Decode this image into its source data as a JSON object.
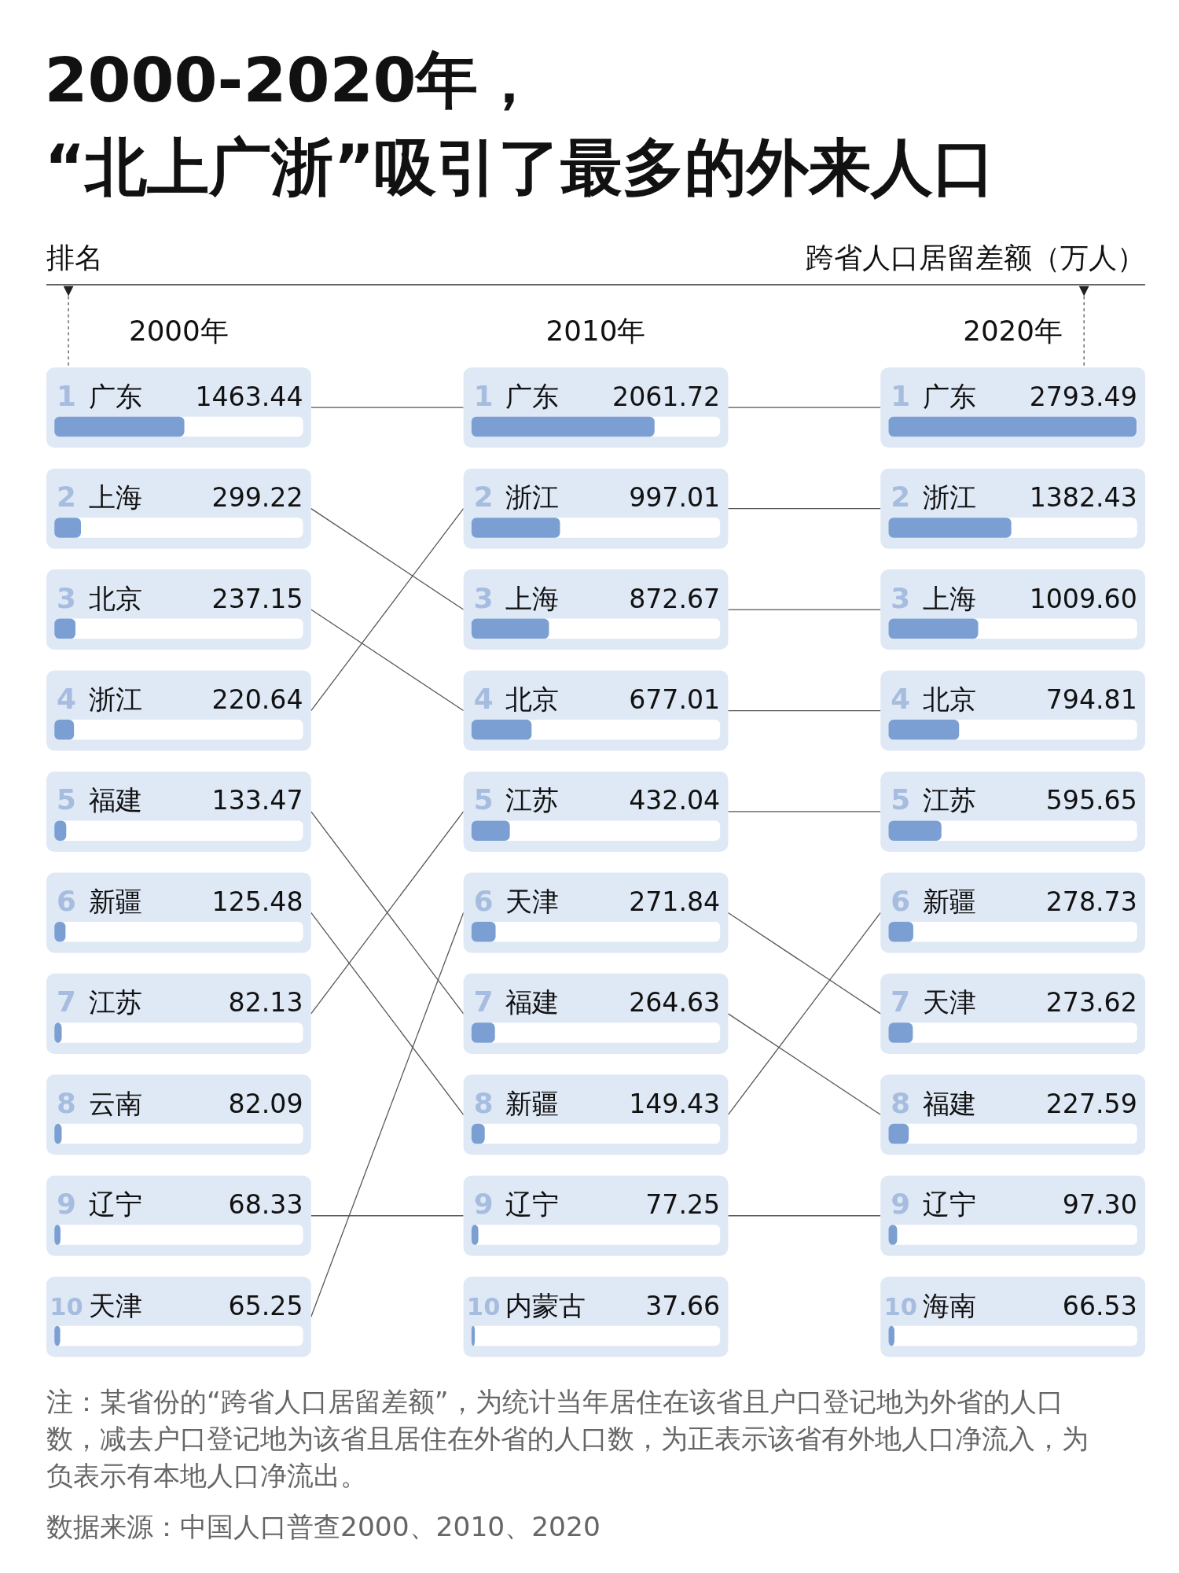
{
  "chart_data": [
    {
      "type": "bar",
      "orientation": "horizontal",
      "title": "2000-2020年，\n“北上广浙”吸引了最多的外来人口",
      "subtitle": "2000年",
      "ylabel": "排名",
      "categories": [
        "广东",
        "上海",
        "北京",
        "浙江",
        "福建",
        "新疆",
        "江苏",
        "云南",
        "辽宁",
        "天津"
      ],
      "values": [
        1463.44,
        299.22,
        237.15,
        220.64,
        133.47,
        125.48,
        82.13,
        82.09,
        68.33,
        65.25
      ],
      "value_labels": [
        "1463.44",
        "299.22",
        "237.15",
        "220.64",
        "133.47",
        "125.48",
        "82.13",
        "82.09",
        "68.33",
        "65.25"
      ],
      "color": "#7b9fd3",
      "xlim": [
        0,
        2800
      ],
      "annotations": [
        "1",
        "2",
        "3",
        "4",
        "5",
        "6",
        "7",
        "8",
        "9",
        "10",
        "注：某省份的“跨省人口居留差额”，为统计当年居住在该省且户口登记地为外省的人口数，减去户口登记地为该省且居住在外省的人口数，为正表示该省有外地人口净流入，为负表示有本地人口净流出。",
        "数据来源：中国人口普查2000、2010、2020"
      ]
    },
    {
      "type": "bar",
      "orientation": "horizontal",
      "subtitle": "2010年",
      "categories": [
        "广东",
        "浙江",
        "上海",
        "北京",
        "江苏",
        "天津",
        "福建",
        "新疆",
        "辽宁",
        "内蒙古"
      ],
      "values": [
        2061.72,
        997.01,
        872.67,
        677.01,
        432.04,
        271.84,
        264.63,
        149.43,
        77.25,
        37.66
      ],
      "value_labels": [
        "2061.72",
        "997.01",
        "872.67",
        "677.01",
        "432.04",
        "271.84",
        "264.63",
        "149.43",
        "77.25",
        "37.66"
      ],
      "color": "#7b9fd3",
      "xlim": [
        0,
        2800
      ],
      "annotations": [
        "1",
        "2",
        "3",
        "4",
        "5",
        "6",
        "7",
        "8",
        "9",
        "10"
      ]
    },
    {
      "type": "bar",
      "orientation": "horizontal",
      "subtitle": "2020年",
      "xlabel": "跨省人口居留差额（万人）",
      "categories": [
        "广东",
        "浙江",
        "上海",
        "北京",
        "江苏",
        "新疆",
        "天津",
        "福建",
        "辽宁",
        "海南"
      ],
      "values": [
        2793.49,
        1382.43,
        1009.6,
        794.81,
        595.65,
        278.73,
        273.62,
        227.59,
        97.3,
        66.53
      ],
      "value_labels": [
        "2793.49",
        "1382.43",
        "1009.60",
        "794.81",
        "595.65",
        "278.73",
        "273.62",
        "227.59",
        "97.30",
        "66.53"
      ],
      "color": "#7b9fd3",
      "xlim": [
        0,
        2800
      ],
      "annotations": [
        "1",
        "2",
        "3",
        "4",
        "5",
        "6",
        "7",
        "8",
        "9",
        "10"
      ]
    }
  ]
}
